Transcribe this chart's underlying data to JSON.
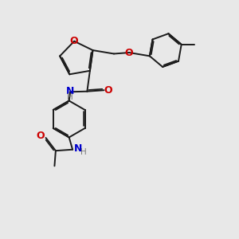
{
  "bg_color": "#e8e8e8",
  "bond_color": "#1a1a1a",
  "oxygen_color": "#cc0000",
  "nitrogen_color": "#0000cc",
  "hydrogen_color": "#7a7a7a",
  "lw": 1.4,
  "dg": 0.055,
  "xlim": [
    0,
    10
  ],
  "ylim": [
    0,
    10
  ]
}
